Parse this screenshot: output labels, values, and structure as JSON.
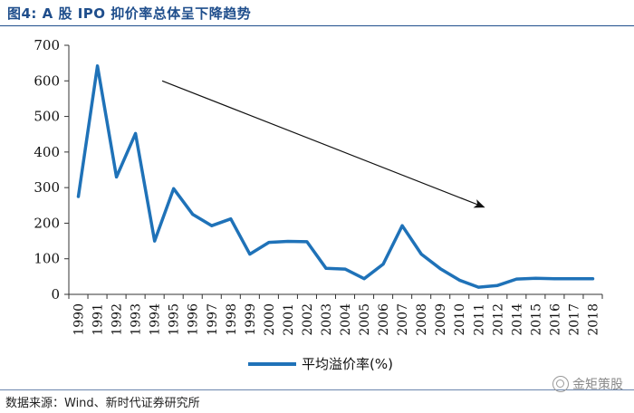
{
  "header": {
    "title": "图4:   A 股 IPO 抑价率总体呈下降趋势"
  },
  "footer": {
    "source": "数据来源：Wind、新时代证券研究所",
    "watermark": "金矩策股"
  },
  "colors": {
    "title": "#1f4e8c",
    "series": "#1f72b8",
    "axis": "#333333"
  },
  "chart_data": {
    "type": "line",
    "title": "A 股 IPO 抑价率总体呈下降趋势",
    "xlabel": "",
    "ylabel": "",
    "ylim": [
      0,
      700
    ],
    "yticks": [
      0,
      100,
      200,
      300,
      400,
      500,
      600,
      700
    ],
    "categories": [
      "1990",
      "1991",
      "1992",
      "1993",
      "1994",
      "1995",
      "1996",
      "1997",
      "1998",
      "1999",
      "2000",
      "2001",
      "2002",
      "2003",
      "2004",
      "2005",
      "2006",
      "2007",
      "2008",
      "2009",
      "2010",
      "2011",
      "2012",
      "2014",
      "2015",
      "2016",
      "2017",
      "2018"
    ],
    "series": [
      {
        "name": "平均溢价率(%)",
        "values": [
          275,
          642,
          330,
          452,
          150,
          297,
          225,
          193,
          212,
          113,
          146,
          149,
          148,
          73,
          71,
          44,
          85,
          193,
          113,
          72,
          40,
          20,
          25,
          43,
          45,
          44,
          44,
          44
        ]
      }
    ],
    "annotation": "downward trend arrow from 1994 to 2011",
    "legend_position": "bottom-center",
    "grid": false
  }
}
